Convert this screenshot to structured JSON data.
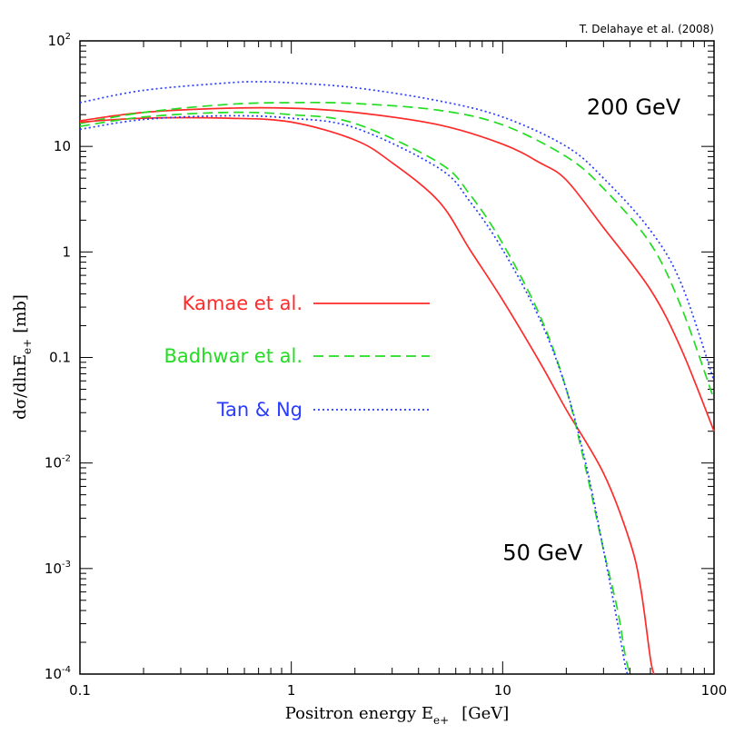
{
  "chart_data": {
    "type": "line",
    "credit": "T. Delahaye et al. (2008)",
    "xlabel": "Positron energy E",
    "xlabel_sub": "e+",
    "xlabel_unit": "[GeV]",
    "ylabel": "dσ/dlnE",
    "ylabel_sub": "e+",
    "ylabel_unit": "[mb]",
    "xscale": "log",
    "yscale": "log",
    "xlim": [
      0.1,
      100
    ],
    "ylim": [
      0.0001,
      100
    ],
    "x_ticks": [
      {
        "value": 0.1,
        "label": "0.1"
      },
      {
        "value": 1,
        "label": "1"
      },
      {
        "value": 10,
        "label": "10"
      },
      {
        "value": 100,
        "label": "100"
      }
    ],
    "y_ticks": [
      {
        "value": 0.0001,
        "base": "10",
        "exp": "-4"
      },
      {
        "value": 0.001,
        "base": "10",
        "exp": "-3"
      },
      {
        "value": 0.01,
        "base": "10",
        "exp": "-2"
      },
      {
        "value": 0.1,
        "base": "0.1",
        "exp": ""
      },
      {
        "value": 1,
        "base": "1",
        "exp": ""
      },
      {
        "value": 10,
        "base": "10",
        "exp": ""
      },
      {
        "value": 100,
        "base": "10",
        "exp": "2"
      }
    ],
    "annotations": [
      {
        "text": "200 GeV",
        "x": 25,
        "y": 20
      },
      {
        "text": "50 GeV",
        "x": 10,
        "y": 0.0012
      }
    ],
    "legend": [
      {
        "label": "Kamae et al.",
        "color": "#ff2a2a",
        "dash": "solid"
      },
      {
        "label": "Badhwar et al.",
        "color": "#22dd22",
        "dash": "dashed"
      },
      {
        "label": "Tan & Ng",
        "color": "#2a3cff",
        "dash": "dotted"
      }
    ],
    "series": [
      {
        "name": "Kamae et al. (200 GeV)",
        "model": "Kamae et al.",
        "color": "#ff2a2a",
        "dash": "solid",
        "x": [
          0.1,
          0.2,
          0.5,
          1,
          2,
          5,
          10,
          15,
          20,
          30,
          50,
          70,
          100
        ],
        "y": [
          17.5,
          21,
          23,
          23,
          21,
          16,
          10.5,
          7,
          4.8,
          1.7,
          0.44,
          0.12,
          0.02
        ]
      },
      {
        "name": "Badhwar et al. (200 GeV)",
        "model": "Badhwar et al.",
        "color": "#22dd22",
        "dash": "dashed",
        "x": [
          0.1,
          0.2,
          0.5,
          1,
          2,
          5,
          10,
          20,
          30,
          50,
          70,
          100
        ],
        "y": [
          16.5,
          21,
          25,
          26,
          25.5,
          22,
          16,
          8,
          4,
          1.2,
          0.3,
          0.04
        ]
      },
      {
        "name": "Tan & Ng (200 GeV)",
        "model": "Tan & Ng",
        "color": "#2a3cff",
        "dash": "dotted",
        "x": [
          0.1,
          0.2,
          0.5,
          0.7,
          1,
          2,
          5,
          10,
          20,
          30,
          50,
          70,
          100
        ],
        "y": [
          26,
          34,
          40,
          41,
          40,
          36,
          27,
          19,
          10,
          5,
          1.6,
          0.5,
          0.06
        ]
      },
      {
        "name": "Kamae et al. (50 GeV)",
        "model": "Kamae et al.",
        "color": "#ff2a2a",
        "dash": "solid",
        "x": [
          0.1,
          0.2,
          0.5,
          1,
          2,
          3,
          5,
          7,
          10,
          15,
          20,
          30,
          40,
          45,
          50,
          52
        ],
        "y": [
          17,
          18.5,
          18.5,
          17,
          11.5,
          7,
          3,
          1.05,
          0.35,
          0.09,
          0.032,
          0.008,
          0.0018,
          0.00065,
          0.00014,
          0.0001
        ]
      },
      {
        "name": "Badhwar et al. (50 GeV)",
        "model": "Badhwar et al.",
        "color": "#22dd22",
        "dash": "dashed",
        "x": [
          0.1,
          0.2,
          0.5,
          1,
          2,
          5,
          7,
          10,
          15,
          20,
          25,
          30,
          35,
          38,
          40
        ],
        "y": [
          15.5,
          19,
          21,
          20,
          16.5,
          7,
          3.5,
          1.2,
          0.25,
          0.05,
          0.008,
          0.0015,
          0.0004,
          0.00015,
          0.0001
        ]
      },
      {
        "name": "Tan & Ng (50 GeV)",
        "model": "Tan & Ng",
        "color": "#2a3cff",
        "dash": "dotted",
        "x": [
          0.1,
          0.2,
          0.5,
          1,
          2,
          5,
          7,
          10,
          15,
          20,
          25,
          30,
          35,
          38,
          39
        ],
        "y": [
          14.5,
          18,
          19.5,
          18.5,
          15,
          6.2,
          3,
          1.05,
          0.23,
          0.05,
          0.009,
          0.0015,
          0.0003,
          0.00012,
          0.0001
        ]
      }
    ]
  }
}
